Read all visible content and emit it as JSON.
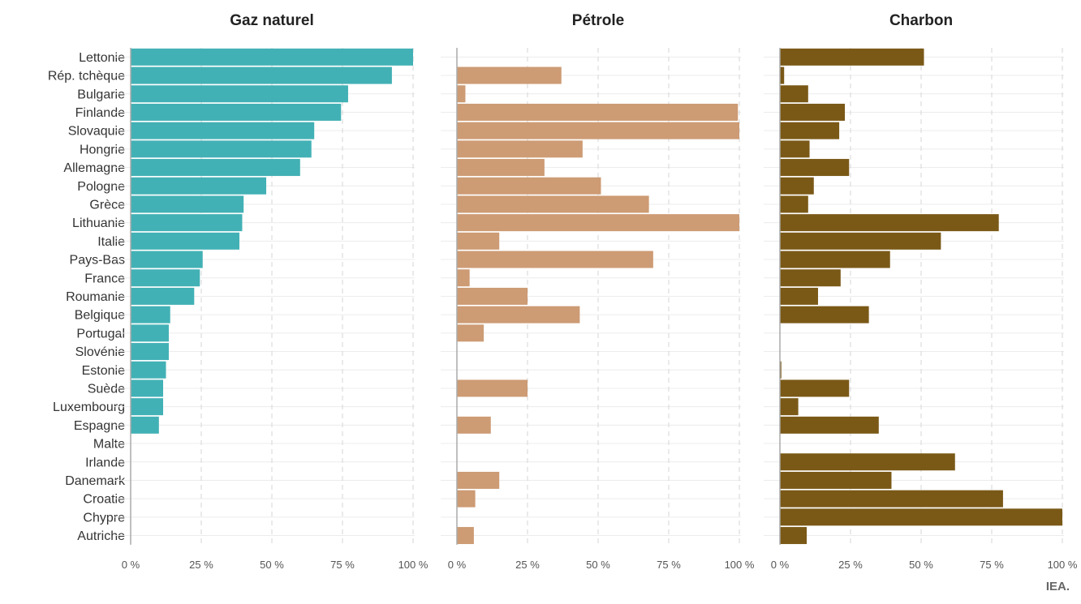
{
  "source_label": "IEA.",
  "chart_data": [
    {
      "type": "bar",
      "orientation": "horizontal",
      "title": "Gaz naturel",
      "color": "#42b1b5",
      "xlim": [
        0,
        100
      ],
      "x_ticks": [
        "0 %",
        "25 %",
        "50 %",
        "75 %",
        "100 %"
      ],
      "grid": true,
      "categories": [
        "Lettonie",
        "Rép. tchèque",
        "Bulgarie",
        "Finlande",
        "Slovaquie",
        "Hongrie",
        "Allemagne",
        "Pologne",
        "Grèce",
        "Lithuanie",
        "Italie",
        "Pays-Bas",
        "France",
        "Roumanie",
        "Belgique",
        "Portugal",
        "Slovénie",
        "Estonie",
        "Suède",
        "Luxembourg",
        "Espagne",
        "Malte",
        "Irlande",
        "Danemark",
        "Croatie",
        "Chypre",
        "Autriche"
      ],
      "values": [
        100,
        92.5,
        77,
        74.5,
        65,
        64,
        60,
        48,
        40,
        39.5,
        38.5,
        25.5,
        24.5,
        22.5,
        14,
        13.5,
        13.5,
        12.5,
        11.5,
        11.5,
        10,
        0,
        0,
        0,
        0,
        0,
        0
      ]
    },
    {
      "type": "bar",
      "orientation": "horizontal",
      "title": "Pétrole",
      "color": "#cd9b74",
      "xlim": [
        0,
        100
      ],
      "x_ticks": [
        "0 %",
        "25 %",
        "50 %",
        "75 %",
        "100 %"
      ],
      "grid": true,
      "categories": [
        "Lettonie",
        "Rép. tchèque",
        "Bulgarie",
        "Finlande",
        "Slovaquie",
        "Hongrie",
        "Allemagne",
        "Pologne",
        "Grèce",
        "Lithuanie",
        "Italie",
        "Pays-Bas",
        "France",
        "Roumanie",
        "Belgique",
        "Portugal",
        "Slovénie",
        "Estonie",
        "Suède",
        "Luxembourg",
        "Espagne",
        "Malte",
        "Irlande",
        "Danemark",
        "Croatie",
        "Chypre",
        "Autriche"
      ],
      "values": [
        0,
        37,
        3,
        99.5,
        100,
        44.5,
        31,
        51,
        68,
        100,
        15,
        69.5,
        4.5,
        25,
        43.5,
        9.5,
        0,
        0,
        25,
        0,
        12,
        0,
        0,
        15,
        6.5,
        0,
        6
      ]
    },
    {
      "type": "bar",
      "orientation": "horizontal",
      "title": "Charbon",
      "color": "#7a5917",
      "xlim": [
        0,
        100
      ],
      "x_ticks": [
        "0 %",
        "25 %",
        "50 %",
        "75 %",
        "100 %"
      ],
      "grid": true,
      "categories": [
        "Lettonie",
        "Rép. tchèque",
        "Bulgarie",
        "Finlande",
        "Slovaquie",
        "Hongrie",
        "Allemagne",
        "Pologne",
        "Grèce",
        "Lithuanie",
        "Italie",
        "Pays-Bas",
        "France",
        "Roumanie",
        "Belgique",
        "Portugal",
        "Slovénie",
        "Estonie",
        "Suède",
        "Luxembourg",
        "Espagne",
        "Malte",
        "Irlande",
        "Danemark",
        "Croatie",
        "Chypre",
        "Autriche"
      ],
      "values": [
        51,
        1.5,
        10,
        23,
        21,
        10.5,
        24.5,
        12,
        10,
        77.5,
        57,
        39,
        21.5,
        13.5,
        31.5,
        0,
        0,
        0.5,
        24.5,
        6.5,
        35,
        0,
        62,
        39.5,
        79,
        100,
        9.5
      ]
    }
  ]
}
